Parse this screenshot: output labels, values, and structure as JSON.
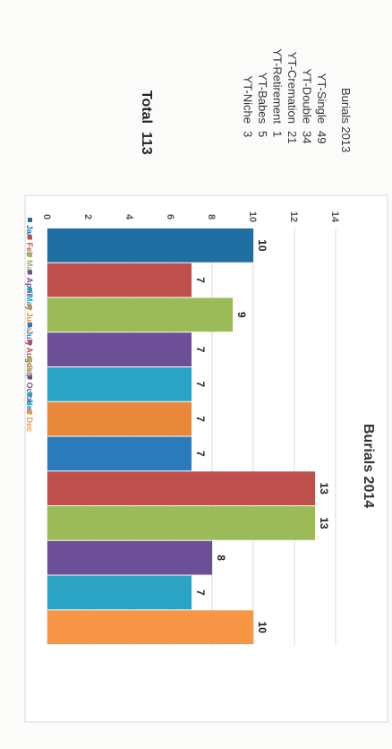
{
  "burials_2013": {
    "title": "Burials 2013",
    "rows": [
      {
        "label": "YT-Single",
        "value": "49"
      },
      {
        "label": "YT-Double",
        "value": "34"
      },
      {
        "label": "YT-Cremation",
        "value": "21"
      },
      {
        "label": "YT-Retirement",
        "value": "1"
      },
      {
        "label": "YT-Babes",
        "value": "5"
      },
      {
        "label": "YT-Niche",
        "value": "3"
      }
    ],
    "total_label": "Total",
    "total_value": "113"
  },
  "chart_data": {
    "type": "bar",
    "title": "Burials 2014",
    "xlabel": "",
    "ylabel": "",
    "ylim": [
      0,
      14
    ],
    "yticks": [
      "0",
      "2",
      "4",
      "6",
      "8",
      "10",
      "12",
      "14"
    ],
    "gridlines": true,
    "legend_position": "right",
    "orientation": "rotated 90 degrees clockwise",
    "series": [
      {
        "name": "Jan",
        "values": [
          10
        ],
        "color": "#1f6fa3"
      },
      {
        "name": "Feb",
        "values": [
          7
        ],
        "color": "#c0504d"
      },
      {
        "name": "Mar",
        "values": [
          9
        ],
        "color": "#9bbb59"
      },
      {
        "name": "April",
        "values": [
          7
        ],
        "color": "#6d4f97"
      },
      {
        "name": "May",
        "values": [
          7
        ],
        "color": "#2aa3c4"
      },
      {
        "name": "June",
        "values": [
          7
        ],
        "color": "#e8883a"
      },
      {
        "name": "July",
        "values": [
          7
        ],
        "color": "#2c7bbd"
      },
      {
        "name": "August",
        "values": [
          13
        ],
        "color": "#c0504d"
      },
      {
        "name": "Sep",
        "values": [
          13
        ],
        "color": "#9bbb59"
      },
      {
        "name": "October",
        "values": [
          8
        ],
        "color": "#6d4f97"
      },
      {
        "name": "Nov",
        "values": [
          7
        ],
        "color": "#2aa3c4"
      },
      {
        "name": "Dec",
        "values": [
          10
        ],
        "color": "#f79646"
      }
    ],
    "data_labels": [
      "10",
      "7",
      "9",
      "7",
      "7",
      "7",
      "7",
      "13",
      "13",
      "8",
      "7",
      "10"
    ]
  }
}
